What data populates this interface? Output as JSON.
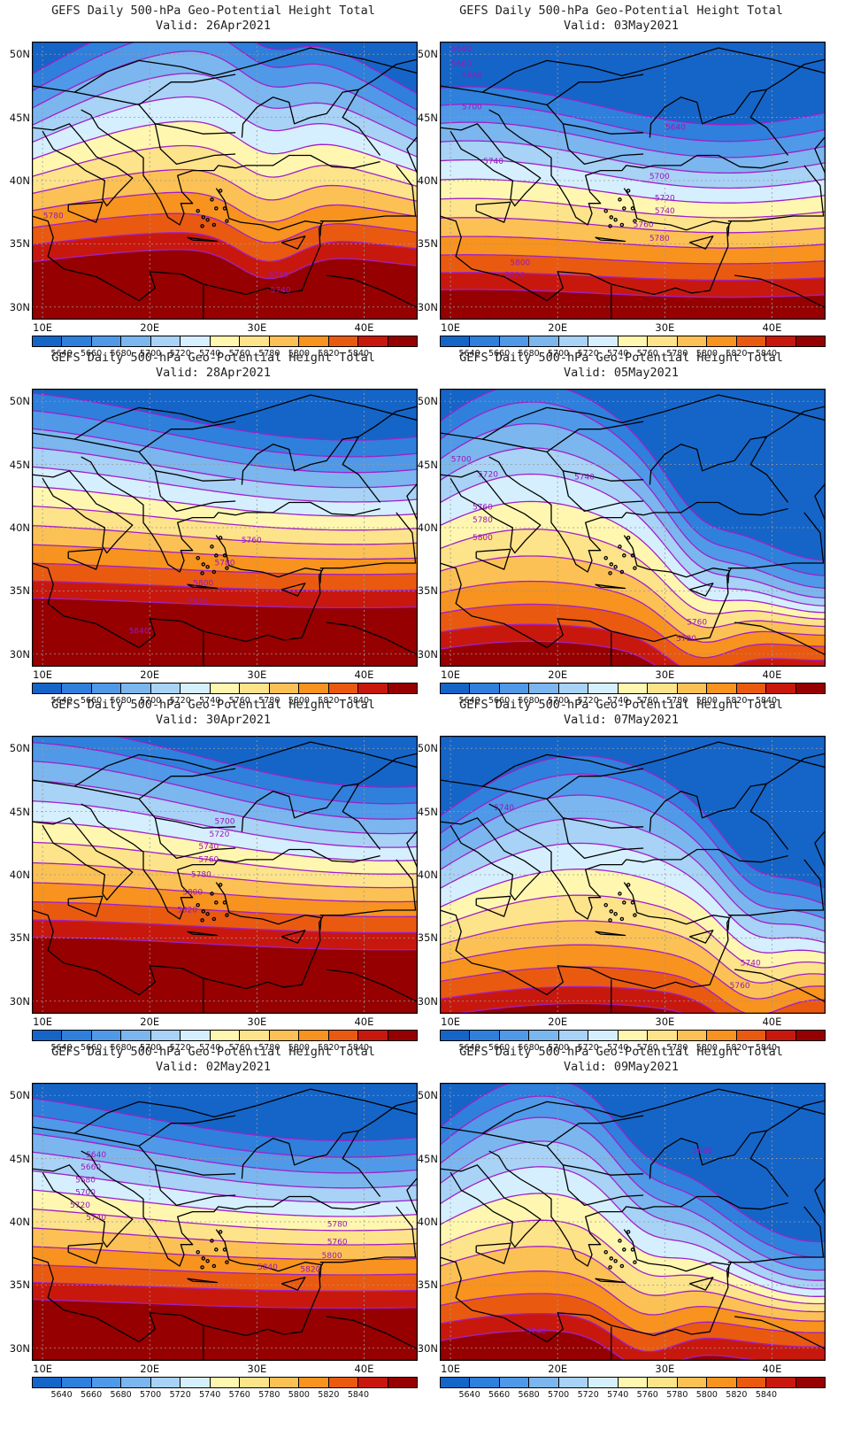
{
  "title_line": "GEFS Daily 500-hPa Geo-Potential Height Total",
  "valid_prefix": "Valid: ",
  "x_ticks": [
    "10E",
    "20E",
    "30E",
    "40E"
  ],
  "y_ticks": [
    "50N",
    "45N",
    "40N",
    "35N",
    "30N"
  ],
  "colorbar": {
    "labels": [
      "5640",
      "5660",
      "5680",
      "5700",
      "5720",
      "5740",
      "5760",
      "5780",
      "5800",
      "5820",
      "5840"
    ],
    "colors": [
      "#1565c8",
      "#2e80dc",
      "#4f99e8",
      "#7bb6ef",
      "#a8d2f6",
      "#d5efff",
      "#fff7b0",
      "#fde38a",
      "#fbc154",
      "#f7931e",
      "#e95a10",
      "#c8180e",
      "#960000"
    ]
  },
  "contour_color": "#a020c8",
  "panels": [
    {
      "valid": "26Apr2021",
      "labels": [
        "5780",
        "5720",
        "5740"
      ]
    },
    {
      "valid": "03May2021",
      "labels": [
        "5640",
        "5660",
        "5680",
        "5700",
        "5640",
        "5740",
        "5700",
        "5720",
        "5740",
        "5760",
        "5780",
        "5800",
        "5820"
      ]
    },
    {
      "valid": "28Apr2021",
      "labels": [
        "5760",
        "5780",
        "5800",
        "5820",
        "5840"
      ]
    },
    {
      "valid": "05May2021",
      "labels": [
        "5700",
        "5720",
        "5740",
        "5760",
        "5780",
        "5800",
        "5760",
        "5780"
      ]
    },
    {
      "valid": "30Apr2021",
      "labels": [
        "5700",
        "5720",
        "5740",
        "5760",
        "5780",
        "5800",
        "5820"
      ]
    },
    {
      "valid": "07May2021",
      "labels": [
        "5740",
        "5740",
        "5760"
      ]
    },
    {
      "valid": "02May2021",
      "labels": [
        "5640",
        "5660",
        "5680",
        "5700",
        "5720",
        "5740",
        "5780",
        "5760",
        "5800",
        "5820",
        "5840"
      ]
    },
    {
      "valid": "09May2021",
      "labels": [
        "5680",
        "5740"
      ]
    }
  ]
}
